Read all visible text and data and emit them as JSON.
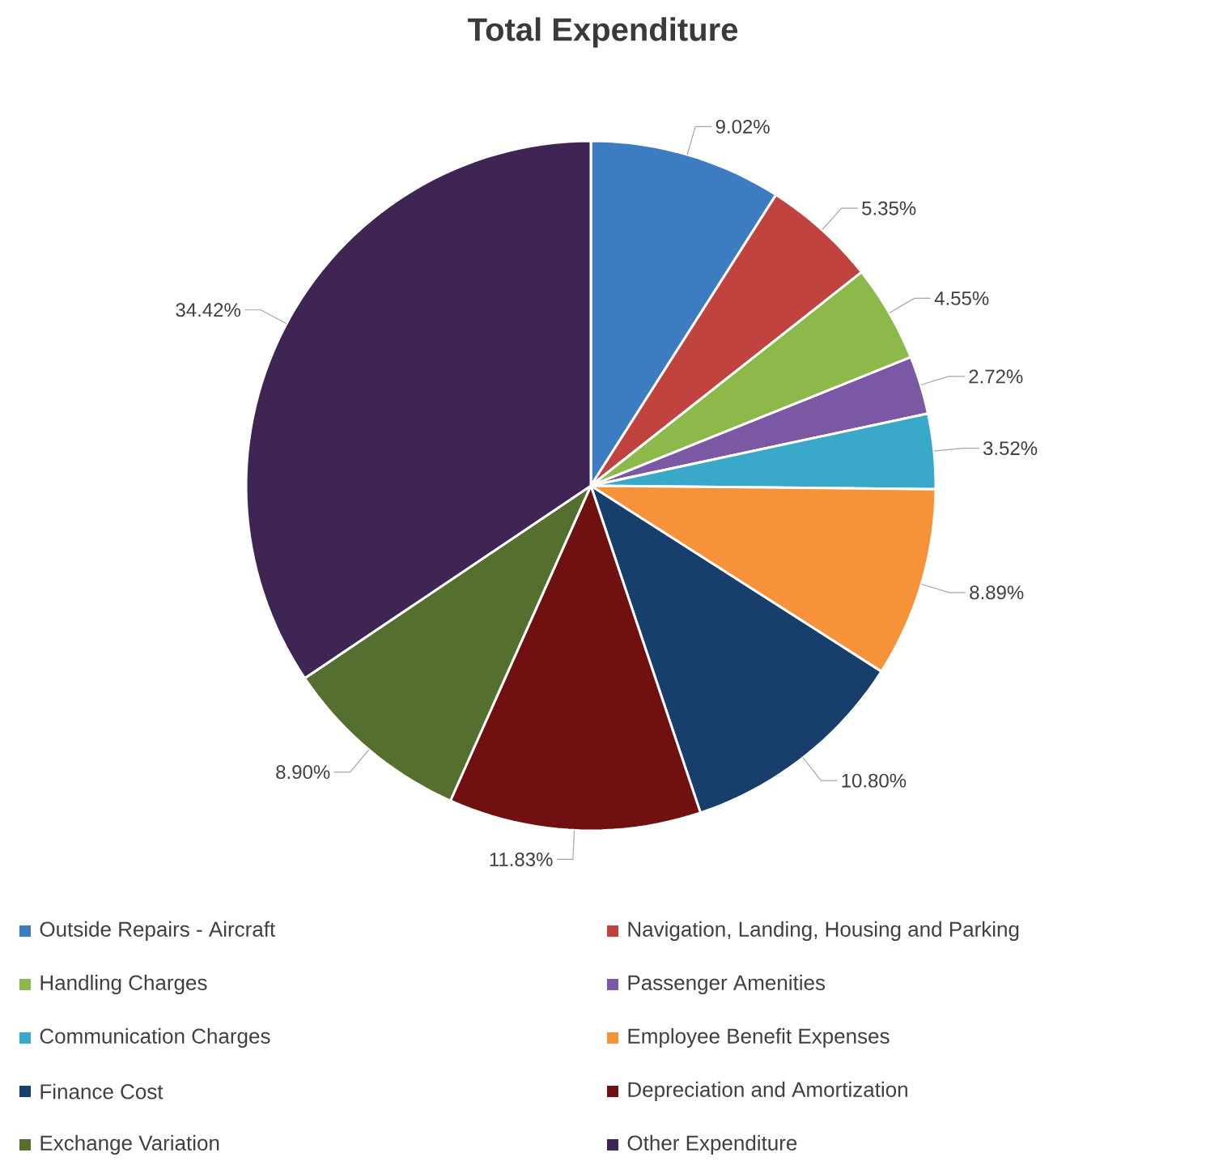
{
  "chart_data": {
    "type": "pie",
    "title": "Total Expenditure",
    "categories": [
      "Outside Repairs - Aircraft",
      "Navigation, Landing, Housing and Parking",
      "Handling Charges",
      "Passenger Amenities",
      "Communication Charges",
      "Employee Benefit Expenses",
      "Finance Cost",
      "Depreciation and Amortization",
      "Exchange Variation",
      "Other Expenditure"
    ],
    "values": [
      9.02,
      5.35,
      4.55,
      2.72,
      3.52,
      8.89,
      10.8,
      11.83,
      8.9,
      34.42
    ],
    "value_labels": [
      "9.02%",
      "5.35%",
      "4.55%",
      "2.72%",
      "3.52%",
      "8.89%",
      "10.80%",
      "11.83%",
      "8.90%",
      "34.42%"
    ],
    "colors": [
      "#3e7cc1",
      "#c0433f",
      "#8db94b",
      "#7a58a3",
      "#3aa8c8",
      "#f5923a",
      "#183f6c",
      "#701010",
      "#55702e",
      "#3e2553"
    ],
    "legend": "bottom"
  }
}
